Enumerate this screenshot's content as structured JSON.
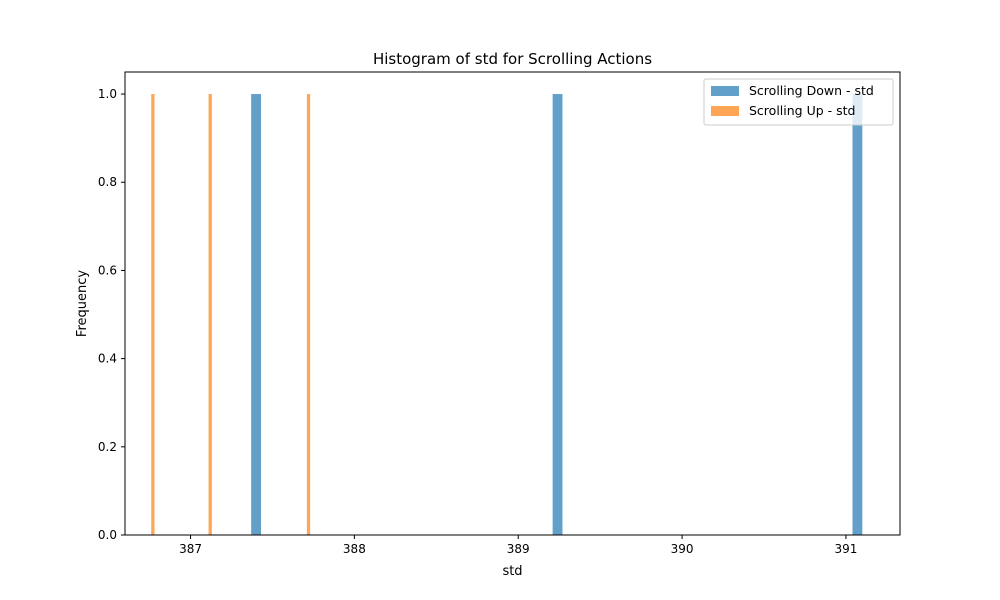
{
  "chart_data": {
    "type": "bar",
    "title": "Histogram of std for Scrolling Actions",
    "xlabel": "std",
    "ylabel": "Frequency",
    "xlim": [
      386.6,
      391.33
    ],
    "ylim": [
      0,
      1.05
    ],
    "xticks": [
      387,
      388,
      389,
      390,
      391
    ],
    "yticks": [
      0.0,
      0.2,
      0.4,
      0.6,
      0.8,
      1.0
    ],
    "xtick_labels": [
      "387",
      "388",
      "389",
      "390",
      "391"
    ],
    "ytick_labels": [
      "0.0",
      "0.2",
      "0.4",
      "0.6",
      "0.8",
      "1.0"
    ],
    "grid": false,
    "legend_position": "top-right",
    "series": [
      {
        "name": "Scrolling Down - std",
        "color": "#1f77b4",
        "opacity": 0.7,
        "bars": [
          {
            "x0": 387.37,
            "x1": 387.43,
            "value": 1
          },
          {
            "x0": 389.21,
            "x1": 389.27,
            "value": 1
          },
          {
            "x0": 391.04,
            "x1": 391.1,
            "value": 1
          }
        ]
      },
      {
        "name": "Scrolling Up - std",
        "color": "#ff7f0e",
        "opacity": 0.7,
        "bars": [
          {
            "x0": 386.76,
            "x1": 386.78,
            "value": 1
          },
          {
            "x0": 387.11,
            "x1": 387.13,
            "value": 1
          },
          {
            "x0": 387.71,
            "x1": 387.73,
            "value": 1
          }
        ]
      }
    ]
  }
}
